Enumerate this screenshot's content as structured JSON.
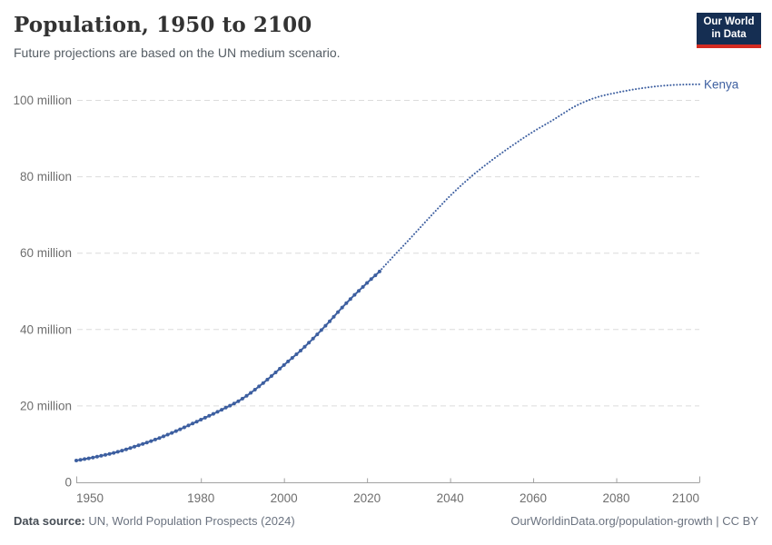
{
  "header": {
    "title": "Population, 1950 to 2100",
    "subtitle": "Future projections are based on the UN medium scenario.",
    "logo": {
      "line1": "Our World",
      "line2": "in Data"
    }
  },
  "footer": {
    "source_label": "Data source:",
    "source_text": " UN, World Population Prospects (2024)",
    "link_text": "OurWorldinData.org/population-growth | CC BY"
  },
  "colors": {
    "series_blue": "#3d5fa0",
    "grid": "#dcdcdc",
    "axis": "#a1a1a1",
    "tick_text": "#6e6e6e",
    "logo_navy": "#152e52",
    "logo_red": "#d42b21"
  },
  "chart_data": {
    "type": "line",
    "title": "Population, 1950 to 2100",
    "subtitle": "Future projections are based on the UN medium scenario.",
    "xlabel": "",
    "ylabel": "",
    "xlim": [
      1950,
      2100
    ],
    "ylim": [
      0,
      100
    ],
    "grid": "dashed-horizontal",
    "legend_position": "end-of-line-label",
    "xticks": [
      1950,
      1980,
      2000,
      2020,
      2040,
      2060,
      2080,
      2100
    ],
    "yticks": [
      {
        "value": 0,
        "label": "0"
      },
      {
        "value": 20,
        "label": "20 million"
      },
      {
        "value": 40,
        "label": "40 million"
      },
      {
        "value": 60,
        "label": "60 million"
      },
      {
        "value": 80,
        "label": "80 million"
      },
      {
        "value": 100,
        "label": "100 million"
      }
    ],
    "unit": "million people",
    "series": [
      {
        "name": "Kenya",
        "color": "#3d5fa0",
        "historical": {
          "style": "solid-with-point-markers",
          "years": [
            1950,
            1955,
            1960,
            1965,
            1970,
            1975,
            1980,
            1985,
            1990,
            1995,
            2000,
            2005,
            2010,
            2015,
            2020,
            2023
          ],
          "values": [
            5.7,
            6.7,
            8.0,
            9.7,
            11.6,
            13.9,
            16.4,
            19.0,
            21.9,
            26.0,
            30.7,
            35.5,
            41.0,
            46.9,
            52.2,
            55.2
          ]
        },
        "projection": {
          "style": "dotted",
          "years": [
            2023,
            2025,
            2030,
            2035,
            2040,
            2045,
            2050,
            2055,
            2060,
            2065,
            2070,
            2075,
            2080,
            2085,
            2090,
            2095,
            2100
          ],
          "values": [
            55.2,
            57.6,
            63.4,
            69.3,
            75.0,
            80.0,
            84.3,
            88.2,
            91.8,
            95.0,
            98.4,
            100.7,
            102.0,
            103.0,
            103.7,
            104.1,
            104.2
          ]
        }
      }
    ]
  }
}
